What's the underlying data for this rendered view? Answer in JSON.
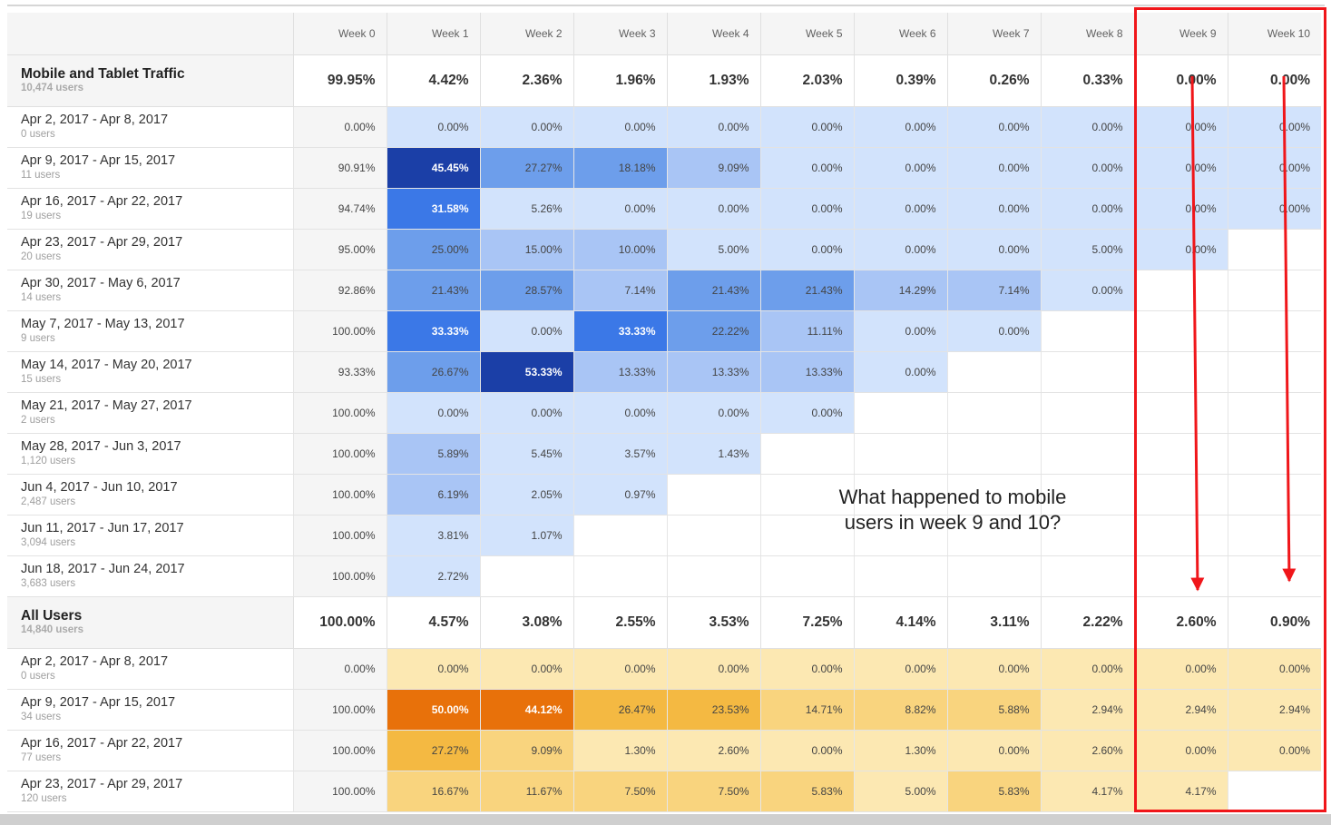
{
  "columns": [
    "Week 0",
    "Week 1",
    "Week 2",
    "Week 3",
    "Week 4",
    "Week 5",
    "Week 6",
    "Week 7",
    "Week 8",
    "Week 9",
    "Week 10"
  ],
  "palette": {
    "blue": [
      "#d2e3fc",
      "#a9c5f5",
      "#6d9eeb",
      "#3b78e7",
      "#1b3fa7"
    ],
    "orange": [
      "#fce8b2",
      "#f9d47e",
      "#f4b942",
      "#f09a1e",
      "#e8710a"
    ],
    "highlight": "#f0161a"
  },
  "groups": [
    {
      "name": "Mobile and Tablet Traffic",
      "users": "10,474 users",
      "color": "blue",
      "totals": [
        "99.95%",
        "4.42%",
        "2.36%",
        "1.96%",
        "1.93%",
        "2.03%",
        "0.39%",
        "0.26%",
        "0.33%",
        "0.00%",
        "0.00%"
      ],
      "rows": [
        {
          "date": "Apr 2, 2017 - Apr 8, 2017",
          "users": "0 users",
          "values": [
            "0.00%",
            "0.00%",
            "0.00%",
            "0.00%",
            "0.00%",
            "0.00%",
            "0.00%",
            "0.00%",
            "0.00%",
            "0.00%",
            "0.00%"
          ]
        },
        {
          "date": "Apr 9, 2017 - Apr 15, 2017",
          "users": "11 users",
          "values": [
            "90.91%",
            "45.45%",
            "27.27%",
            "18.18%",
            "9.09%",
            "0.00%",
            "0.00%",
            "0.00%",
            "0.00%",
            "0.00%",
            "0.00%"
          ]
        },
        {
          "date": "Apr 16, 2017 - Apr 22, 2017",
          "users": "19 users",
          "values": [
            "94.74%",
            "31.58%",
            "5.26%",
            "0.00%",
            "0.00%",
            "0.00%",
            "0.00%",
            "0.00%",
            "0.00%",
            "0.00%",
            "0.00%"
          ]
        },
        {
          "date": "Apr 23, 2017 - Apr 29, 2017",
          "users": "20 users",
          "values": [
            "95.00%",
            "25.00%",
            "15.00%",
            "10.00%",
            "5.00%",
            "0.00%",
            "0.00%",
            "0.00%",
            "5.00%",
            "0.00%"
          ]
        },
        {
          "date": "Apr 30, 2017 - May 6, 2017",
          "users": "14 users",
          "values": [
            "92.86%",
            "21.43%",
            "28.57%",
            "7.14%",
            "21.43%",
            "21.43%",
            "14.29%",
            "7.14%",
            "0.00%"
          ]
        },
        {
          "date": "May 7, 2017 - May 13, 2017",
          "users": "9 users",
          "values": [
            "100.00%",
            "33.33%",
            "0.00%",
            "33.33%",
            "22.22%",
            "11.11%",
            "0.00%",
            "0.00%"
          ]
        },
        {
          "date": "May 14, 2017 - May 20, 2017",
          "users": "15 users",
          "values": [
            "93.33%",
            "26.67%",
            "53.33%",
            "13.33%",
            "13.33%",
            "13.33%",
            "0.00%"
          ]
        },
        {
          "date": "May 21, 2017 - May 27, 2017",
          "users": "2 users",
          "values": [
            "100.00%",
            "0.00%",
            "0.00%",
            "0.00%",
            "0.00%",
            "0.00%"
          ]
        },
        {
          "date": "May 28, 2017 - Jun 3, 2017",
          "users": "1,120 users",
          "values": [
            "100.00%",
            "5.89%",
            "5.45%",
            "3.57%",
            "1.43%"
          ]
        },
        {
          "date": "Jun 4, 2017 - Jun 10, 2017",
          "users": "2,487 users",
          "values": [
            "100.00%",
            "6.19%",
            "2.05%",
            "0.97%"
          ]
        },
        {
          "date": "Jun 11, 2017 - Jun 17, 2017",
          "users": "3,094 users",
          "values": [
            "100.00%",
            "3.81%",
            "1.07%"
          ]
        },
        {
          "date": "Jun 18, 2017 - Jun 24, 2017",
          "users": "3,683 users",
          "values": [
            "100.00%",
            "2.72%"
          ]
        }
      ]
    },
    {
      "name": "All Users",
      "users": "14,840 users",
      "color": "orange",
      "totals": [
        "100.00%",
        "4.57%",
        "3.08%",
        "2.55%",
        "3.53%",
        "7.25%",
        "4.14%",
        "3.11%",
        "2.22%",
        "2.60%",
        "0.90%"
      ],
      "rows": [
        {
          "date": "Apr 2, 2017 - Apr 8, 2017",
          "users": "0 users",
          "values": [
            "0.00%",
            "0.00%",
            "0.00%",
            "0.00%",
            "0.00%",
            "0.00%",
            "0.00%",
            "0.00%",
            "0.00%",
            "0.00%",
            "0.00%"
          ]
        },
        {
          "date": "Apr 9, 2017 - Apr 15, 2017",
          "users": "34 users",
          "values": [
            "100.00%",
            "50.00%",
            "44.12%",
            "26.47%",
            "23.53%",
            "14.71%",
            "8.82%",
            "5.88%",
            "2.94%",
            "2.94%",
            "2.94%"
          ]
        },
        {
          "date": "Apr 16, 2017 - Apr 22, 2017",
          "users": "77 users",
          "values": [
            "100.00%",
            "27.27%",
            "9.09%",
            "1.30%",
            "2.60%",
            "0.00%",
            "1.30%",
            "0.00%",
            "2.60%",
            "0.00%",
            "0.00%"
          ]
        },
        {
          "date": "Apr 23, 2017 - Apr 29, 2017",
          "users": "120 users",
          "values": [
            "100.00%",
            "16.67%",
            "11.67%",
            "7.50%",
            "7.50%",
            "5.83%",
            "5.00%",
            "5.83%",
            "4.17%",
            "4.17%"
          ]
        }
      ]
    }
  ],
  "annotation": {
    "line1": "What happened to mobile",
    "line2": "users in week 9 and 10?"
  }
}
